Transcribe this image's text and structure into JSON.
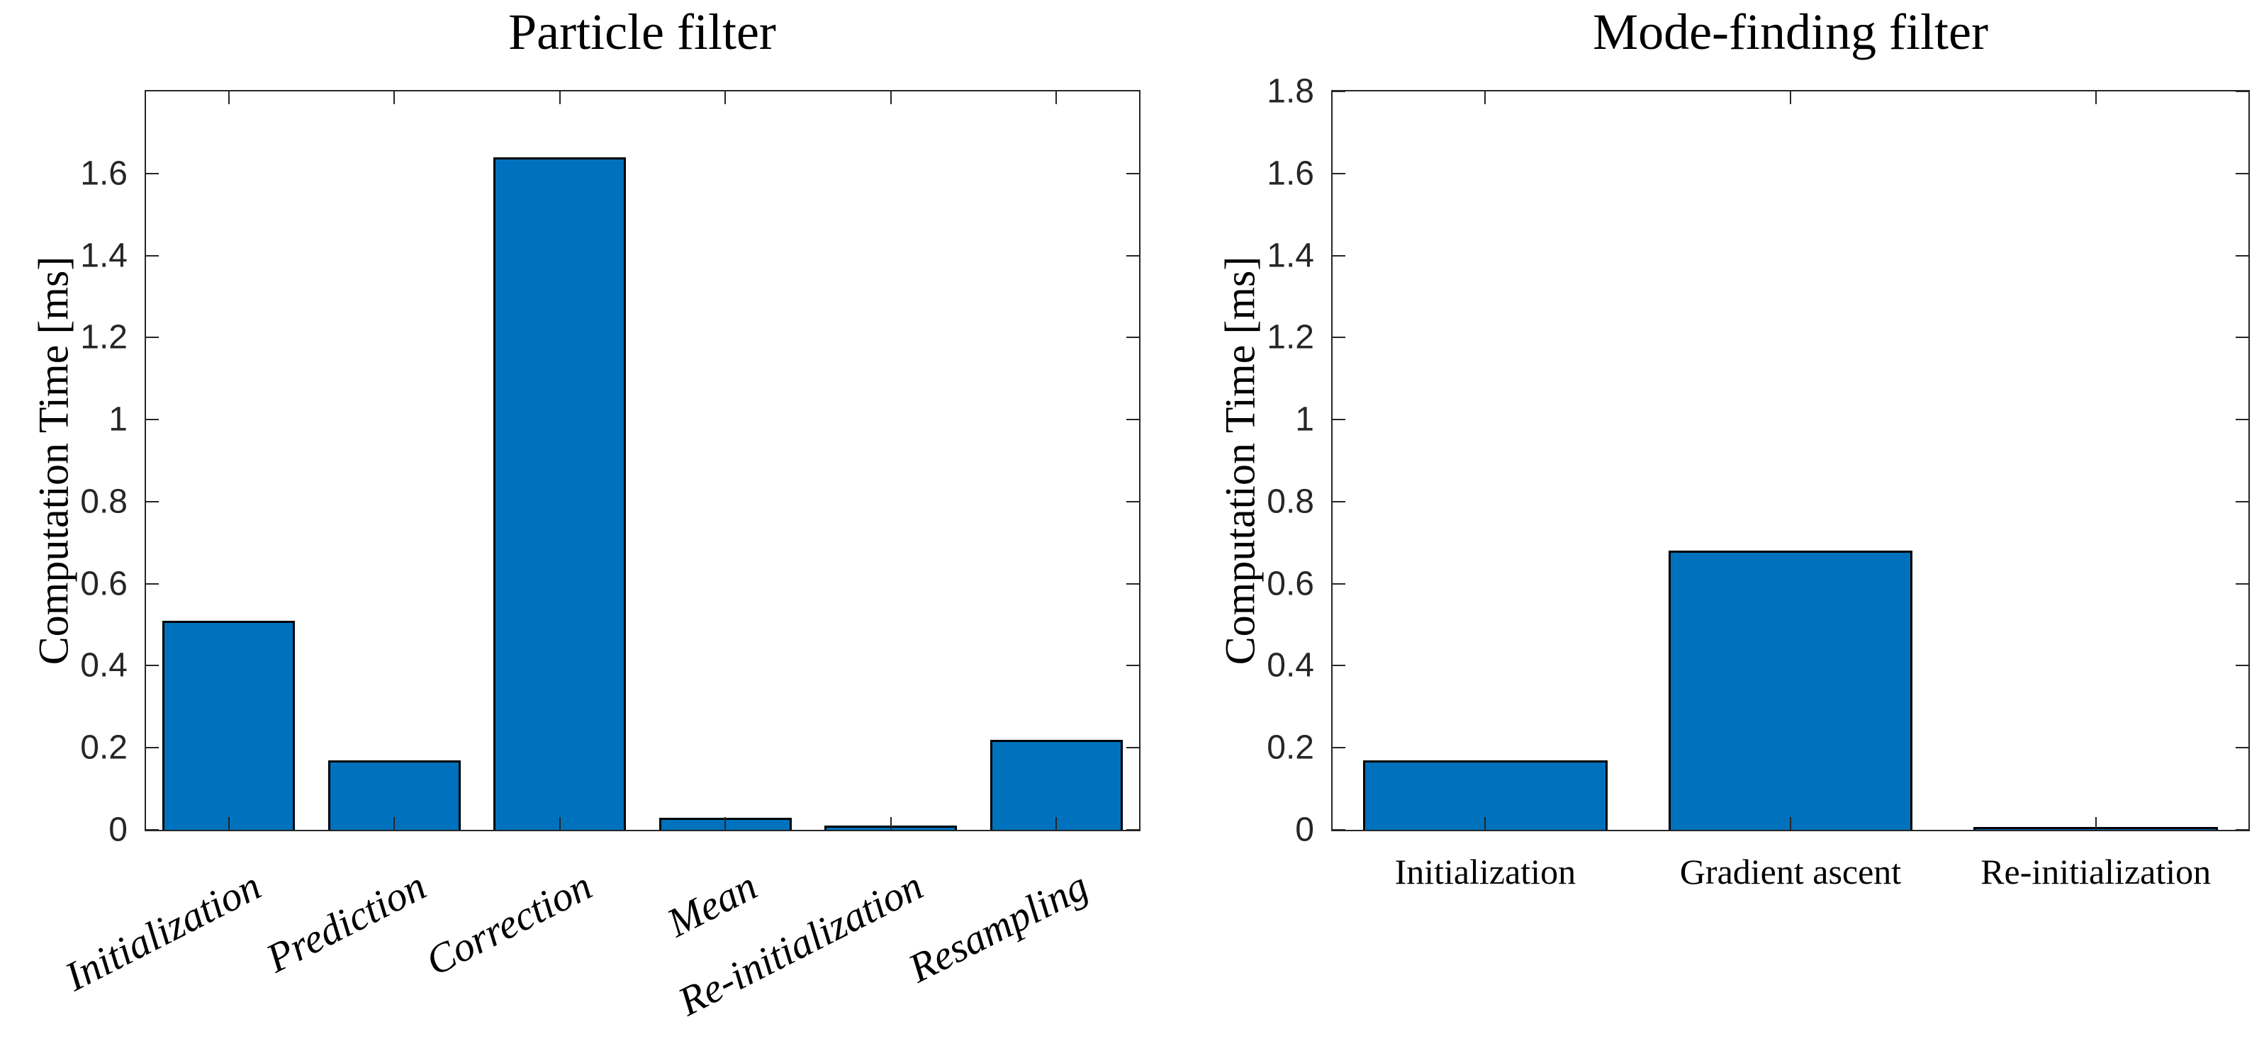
{
  "figure": {
    "background": "#ffffff",
    "axis_color": "#262626"
  },
  "chart_data": [
    {
      "type": "bar",
      "title": "Particle filter",
      "xlabel": "",
      "ylabel": "Computation Time [ms]",
      "categories": [
        "Initialization",
        "Prediction",
        "Correction",
        "Mean",
        "Re-initialization",
        "Resampling"
      ],
      "values": [
        0.51,
        0.17,
        1.64,
        0.03,
        0.01,
        0.22
      ],
      "ylim": [
        0,
        1.8
      ],
      "yticks": [
        0,
        0.2,
        0.4,
        0.6,
        0.8,
        1,
        1.2,
        1.4,
        1.6
      ],
      "ytick_labels": [
        "0",
        "0.2",
        "0.4",
        "0.6",
        "0.8",
        "1",
        "1.2",
        "1.4",
        "1.6"
      ],
      "bar_color": "#0072BD",
      "bar_edge_color": "#000000",
      "bar_width_frac": 0.8,
      "grid": false,
      "legend": false,
      "xlabels_rotated": true
    },
    {
      "type": "bar",
      "title": "Mode-finding filter",
      "xlabel": "",
      "ylabel": "Computation Time [ms]",
      "categories": [
        "Initialization",
        "Gradient ascent",
        "Re-initialization"
      ],
      "values": [
        0.17,
        0.68,
        0.005
      ],
      "ylim": [
        0,
        1.8
      ],
      "yticks": [
        0,
        0.2,
        0.4,
        0.6,
        0.8,
        1,
        1.2,
        1.4,
        1.6,
        1.8
      ],
      "ytick_labels": [
        "0",
        "0.2",
        "0.4",
        "0.6",
        "0.8",
        "1",
        "1.2",
        "1.4",
        "1.6",
        "1.8"
      ],
      "bar_color": "#0072BD",
      "bar_edge_color": "#000000",
      "bar_width_frac": 0.8,
      "grid": false,
      "legend": false,
      "xlabels_rotated": false
    }
  ]
}
